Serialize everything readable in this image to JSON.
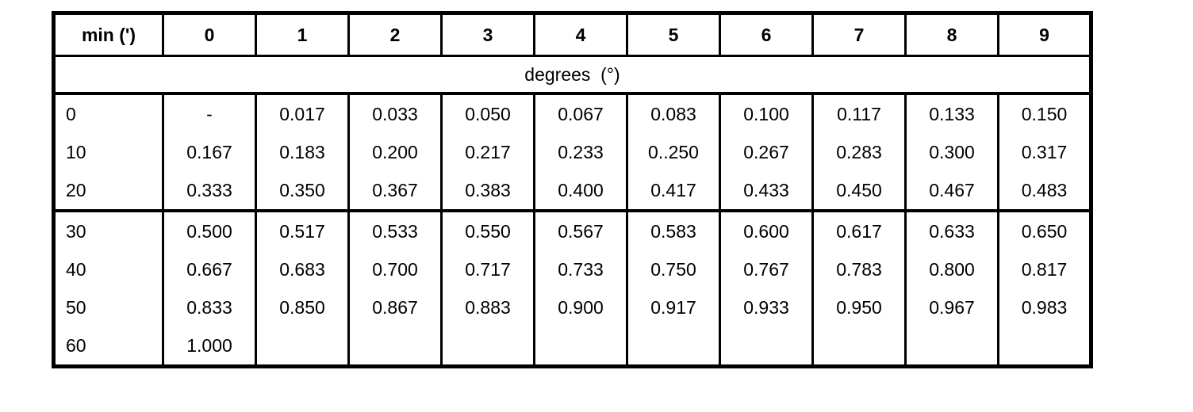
{
  "colors": {
    "background": "#ffffff",
    "border": "#000000",
    "text": "#000000"
  },
  "table": {
    "header": {
      "corner_label": "min (')",
      "columns": [
        "0",
        "1",
        "2",
        "3",
        "4",
        "5",
        "6",
        "7",
        "8",
        "9"
      ]
    },
    "span_label": "degrees  (°)",
    "blocks": [
      {
        "rows": [
          {
            "label": "0",
            "values": [
              "-",
              "0.017",
              "0.033",
              "0.050",
              "0.067",
              "0.083",
              "0.100",
              "0.117",
              "0.133",
              "0.150"
            ]
          },
          {
            "label": "10",
            "values": [
              "0.167",
              "0.183",
              "0.200",
              "0.217",
              "0.233",
              "0..250",
              "0.267",
              "0.283",
              "0.300",
              "0.317"
            ]
          },
          {
            "label": "20",
            "values": [
              "0.333",
              "0.350",
              "0.367",
              "0.383",
              "0.400",
              "0.417",
              "0.433",
              "0.450",
              "0.467",
              "0.483"
            ]
          }
        ]
      },
      {
        "rows": [
          {
            "label": "30",
            "values": [
              "0.500",
              "0.517",
              "0.533",
              "0.550",
              "0.567",
              "0.583",
              "0.600",
              "0.617",
              "0.633",
              "0.650"
            ]
          },
          {
            "label": "40",
            "values": [
              "0.667",
              "0.683",
              "0.700",
              "0.717",
              "0.733",
              "0.750",
              "0.767",
              "0.783",
              "0.800",
              "0.817"
            ]
          },
          {
            "label": "50",
            "values": [
              "0.833",
              "0.850",
              "0.867",
              "0.883",
              "0.900",
              "0.917",
              "0.933",
              "0.950",
              "0.967",
              "0.983"
            ]
          },
          {
            "label": "60",
            "values": [
              "1.000",
              "",
              "",
              "",
              "",
              "",
              "",
              "",
              "",
              ""
            ]
          }
        ]
      }
    ]
  }
}
